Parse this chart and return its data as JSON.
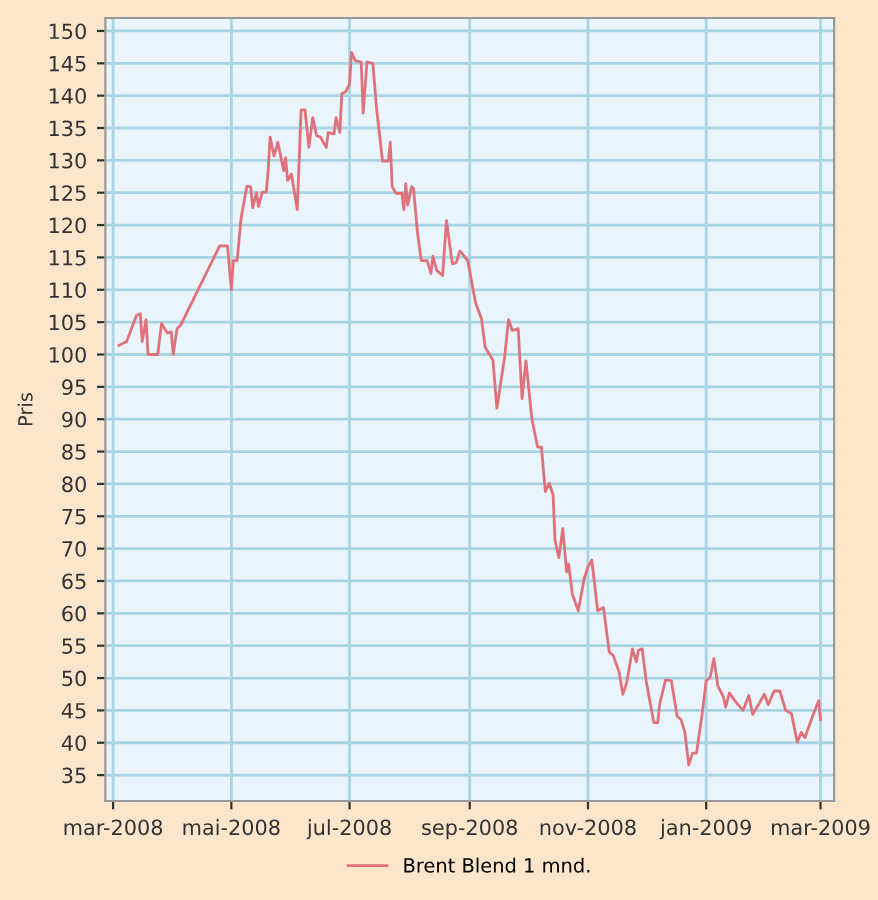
{
  "chart_data": {
    "type": "line",
    "ylabel": "Pris",
    "x": [
      "2008-03-04",
      "2008-03-08",
      "2008-03-13",
      "2008-03-15",
      "2008-03-16",
      "2008-03-18",
      "2008-03-19",
      "2008-03-24",
      "2008-03-26",
      "2008-03-29",
      "2008-03-31",
      "2008-04-01",
      "2008-04-03",
      "2008-04-05",
      "2008-04-25",
      "2008-04-29",
      "2008-05-01",
      "2008-05-02",
      "2008-05-04",
      "2008-05-06",
      "2008-05-09",
      "2008-05-11",
      "2008-05-12",
      "2008-05-14",
      "2008-05-15",
      "2008-05-17",
      "2008-05-19",
      "2008-05-20",
      "2008-05-21",
      "2008-05-23",
      "2008-05-25",
      "2008-05-28",
      "2008-05-29",
      "2008-05-30",
      "2008-06-01",
      "2008-06-04",
      "2008-06-06",
      "2008-06-08",
      "2008-06-10",
      "2008-06-12",
      "2008-06-14",
      "2008-06-16",
      "2008-06-19",
      "2008-06-20",
      "2008-06-23",
      "2008-06-24",
      "2008-06-26",
      "2008-06-27",
      "2008-06-29",
      "2008-07-01",
      "2008-07-02",
      "2008-07-04",
      "2008-07-07",
      "2008-07-08",
      "2008-07-10",
      "2008-07-13",
      "2008-07-15",
      "2008-07-18",
      "2008-07-21",
      "2008-07-22",
      "2008-07-23",
      "2008-07-25",
      "2008-07-28",
      "2008-07-29",
      "2008-07-30",
      "2008-07-31",
      "2008-08-02",
      "2008-08-03",
      "2008-08-05",
      "2008-08-07",
      "2008-08-10",
      "2008-08-12",
      "2008-08-13",
      "2008-08-15",
      "2008-08-18",
      "2008-08-20",
      "2008-08-23",
      "2008-08-25",
      "2008-08-27",
      "2008-08-31",
      "2008-09-04",
      "2008-09-07",
      "2008-09-09",
      "2008-09-13",
      "2008-09-15",
      "2008-09-19",
      "2008-09-21",
      "2008-09-23",
      "2008-09-26",
      "2008-09-28",
      "2008-09-30",
      "2008-10-03",
      "2008-10-06",
      "2008-10-08",
      "2008-10-10",
      "2008-10-12",
      "2008-10-14",
      "2008-10-15",
      "2008-10-17",
      "2008-10-19",
      "2008-10-21",
      "2008-10-22",
      "2008-10-24",
      "2008-10-27",
      "2008-10-30",
      "2008-11-01",
      "2008-11-03",
      "2008-11-06",
      "2008-11-09",
      "2008-11-12",
      "2008-11-14",
      "2008-11-17",
      "2008-11-19",
      "2008-11-21",
      "2008-11-24",
      "2008-11-26",
      "2008-11-27",
      "2008-11-29",
      "2008-12-01",
      "2008-12-05",
      "2008-12-07",
      "2008-12-08",
      "2008-12-11",
      "2008-12-14",
      "2008-12-17",
      "2008-12-19",
      "2008-12-21",
      "2008-12-23",
      "2008-12-25",
      "2008-12-27",
      "2008-12-30",
      "2009-01-01",
      "2009-01-03",
      "2009-01-05",
      "2009-01-07",
      "2009-01-10",
      "2009-01-11",
      "2009-01-13",
      "2009-01-16",
      "2009-01-20",
      "2009-01-23",
      "2009-01-25",
      "2009-01-28",
      "2009-01-31",
      "2009-02-02",
      "2009-02-05",
      "2009-02-08",
      "2009-02-11",
      "2009-02-14",
      "2009-02-17",
      "2009-02-19",
      "2009-02-21",
      "2009-02-26",
      "2009-02-28",
      "2009-03-01"
    ],
    "series": [
      {
        "name": "Brent Blend 1 mnd.",
        "color": "#e0707a",
        "values": [
          101.4,
          102,
          106,
          106.3,
          102,
          105.4,
          100,
          100,
          104.8,
          103.3,
          103.5,
          100,
          104,
          104.6,
          116.8,
          116.8,
          110,
          114.5,
          114.5,
          121,
          126,
          125.9,
          122.7,
          125,
          122.9,
          125.1,
          125.1,
          128.4,
          133.6,
          130.7,
          132.8,
          128.4,
          130.4,
          126.9,
          127.9,
          122.4,
          137.8,
          137.8,
          132,
          136.6,
          133.8,
          133.6,
          132,
          134.3,
          134.1,
          136.6,
          134.3,
          140.3,
          140.6,
          141.8,
          146.7,
          145.4,
          145.2,
          137.3,
          145.2,
          145,
          137.8,
          129.9,
          129.9,
          132.8,
          125.9,
          124.9,
          124.9,
          122.4,
          126.4,
          123.1,
          125.9,
          125.7,
          118.9,
          114.5,
          114.5,
          112.5,
          115.2,
          113,
          112.2,
          120.7,
          114,
          114.2,
          116,
          114.5,
          108,
          105.6,
          101.1,
          99.1,
          91.7,
          99.6,
          105.4,
          103.7,
          104,
          93.2,
          99,
          90.2,
          85.7,
          85.7,
          78.8,
          80.1,
          78.3,
          71.3,
          68.6,
          73.1,
          66.4,
          67.6,
          62.9,
          60.4,
          65.3,
          67.2,
          68.2,
          60.4,
          60.9,
          54,
          53.5,
          51,
          47.5,
          49.3,
          54.5,
          52.5,
          54.3,
          54.5,
          49.6,
          43.1,
          43.1,
          46,
          49.7,
          49.6,
          44.1,
          43.6,
          41.6,
          36.6,
          38.4,
          38.4,
          44.6,
          49.6,
          50.1,
          53,
          48.8,
          47,
          45.5,
          47.7,
          46.4,
          45,
          47.3,
          44.4,
          45.9,
          47.5,
          45.9,
          48,
          48,
          45,
          44.5,
          40.1,
          41.6,
          40.8,
          45,
          46.5,
          43.6
        ]
      }
    ],
    "xlim": [
      "2008-02-26",
      "2009-03-08"
    ],
    "xticks": [
      {
        "value": "2008-03-01",
        "label": "mar-2008"
      },
      {
        "value": "2008-05-01",
        "label": "mai-2008"
      },
      {
        "value": "2008-07-01",
        "label": "jul-2008"
      },
      {
        "value": "2008-09-01",
        "label": "sep-2008"
      },
      {
        "value": "2008-11-01",
        "label": "nov-2008"
      },
      {
        "value": "2009-01-01",
        "label": "jan-2009"
      },
      {
        "value": "2009-03-01",
        "label": "mar-2009"
      }
    ],
    "ylim": [
      31,
      152
    ],
    "yticks": [
      35,
      40,
      45,
      50,
      55,
      60,
      65,
      70,
      75,
      80,
      85,
      90,
      95,
      100,
      105,
      110,
      115,
      120,
      125,
      130,
      135,
      140,
      145,
      150
    ],
    "grid": true,
    "legend": "bottom",
    "marker": "none",
    "line_style": "solid"
  }
}
